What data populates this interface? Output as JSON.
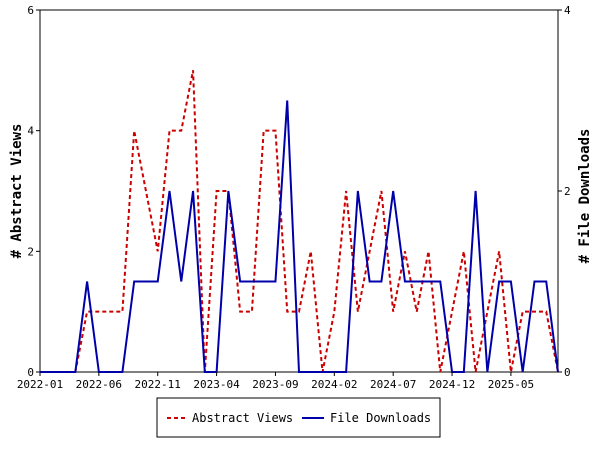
{
  "chart_data": {
    "type": "line",
    "x": [
      "2022-01",
      "2022-02",
      "2022-03",
      "2022-04",
      "2022-05",
      "2022-06",
      "2022-07",
      "2022-08",
      "2022-09",
      "2022-10",
      "2022-11",
      "2022-12",
      "2023-01",
      "2023-02",
      "2023-03",
      "2023-04",
      "2023-05",
      "2023-06",
      "2023-07",
      "2023-08",
      "2023-09",
      "2023-10",
      "2023-11",
      "2023-12",
      "2024-01",
      "2024-02",
      "2024-03",
      "2024-04",
      "2024-05",
      "2024-06",
      "2024-07",
      "2024-08",
      "2024-09",
      "2024-10",
      "2024-11",
      "2024-12",
      "2025-01",
      "2025-02",
      "2025-03",
      "2025-04",
      "2025-05",
      "2025-06",
      "2025-07",
      "2025-08",
      "2025-09"
    ],
    "x_ticks": [
      "2022-01",
      "2022-06",
      "2022-11",
      "2023-04",
      "2023-09",
      "2024-02",
      "2024-07",
      "2024-12",
      "2025-05"
    ],
    "ylabel_left": "# Abstract Views",
    "ylabel_right": "# File Downloads",
    "ylim_left": [
      0,
      6
    ],
    "ylim_right": [
      0,
      4
    ],
    "yticks_left": [
      "0",
      "2",
      "4",
      "6"
    ],
    "yticks_right": [
      "0",
      "2",
      "4"
    ],
    "series": [
      {
        "name": "Abstract Views",
        "axis": "left",
        "color": "#cc0000",
        "dash": "dashed",
        "values": [
          0,
          0,
          0,
          0,
          1,
          1,
          1,
          1,
          4,
          3,
          2,
          4,
          4,
          5,
          0,
          3,
          3,
          1,
          1,
          4,
          4,
          1,
          1,
          2,
          0,
          1,
          3,
          1,
          2,
          3,
          1,
          2,
          1,
          2,
          0,
          1,
          2,
          0,
          1,
          2,
          0,
          1,
          1,
          1,
          0
        ]
      },
      {
        "name": "File Downloads",
        "axis": "right",
        "color": "#0000aa",
        "dash": "solid",
        "values": [
          0,
          0,
          0,
          0,
          1,
          0,
          0,
          0,
          1,
          1,
          1,
          2,
          1,
          2,
          0,
          0,
          2,
          1,
          1,
          1,
          1,
          3,
          0,
          0,
          0,
          0,
          0,
          2,
          1,
          1,
          2,
          1,
          1,
          1,
          1,
          0,
          0,
          2,
          0,
          1,
          1,
          0,
          1,
          1,
          0
        ]
      }
    ],
    "legend_position": "bottom"
  }
}
